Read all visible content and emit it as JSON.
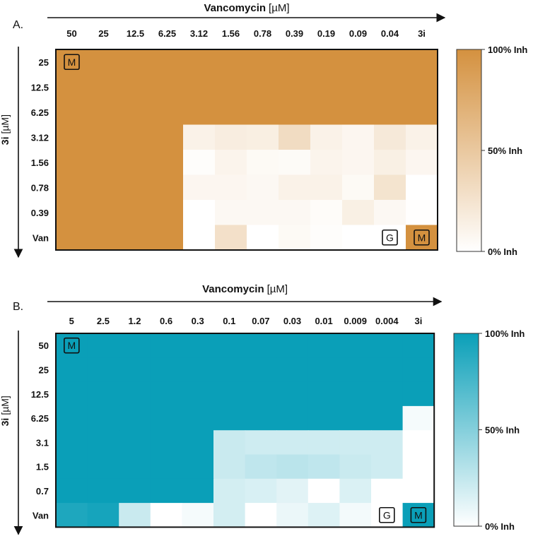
{
  "colors": {
    "panelA_full": "#d4913f",
    "panelB_full": "#0a9fb8",
    "text": "#111111",
    "marker_bg_white": "#ffffff"
  },
  "chart_data": [
    {
      "type": "heatmap",
      "panel_label": "A.",
      "x_title": "Vancomycin",
      "x_unit": "[µM]",
      "y_title": "3i",
      "y_unit": "[µM]",
      "x_labels": [
        "50",
        "25",
        "12.5",
        "6.25",
        "3.12",
        "1.56",
        "0.78",
        "0.39",
        "0.19",
        "0.09",
        "0.04",
        "3i"
      ],
      "y_labels": [
        "25",
        "12.5",
        "6.25",
        "3.12",
        "1.56",
        "0.78",
        "0.39",
        "Van"
      ],
      "colorbar_labels": [
        "100% Inh",
        "50% Inh",
        "0% Inh"
      ],
      "color_scale": [
        "#ffffff",
        "#d4913f"
      ],
      "values": [
        [
          100,
          100,
          100,
          100,
          100,
          100,
          100,
          100,
          100,
          100,
          100,
          100
        ],
        [
          100,
          100,
          100,
          100,
          100,
          100,
          100,
          100,
          100,
          100,
          100,
          100
        ],
        [
          100,
          100,
          100,
          100,
          100,
          100,
          100,
          100,
          100,
          100,
          100,
          100
        ],
        [
          100,
          100,
          100,
          100,
          12,
          16,
          15,
          32,
          12,
          8,
          20,
          12
        ],
        [
          100,
          100,
          100,
          100,
          2,
          10,
          5,
          4,
          10,
          8,
          14,
          8
        ],
        [
          100,
          100,
          100,
          100,
          8,
          8,
          6,
          12,
          12,
          5,
          25,
          0
        ],
        [
          100,
          100,
          100,
          100,
          0,
          6,
          6,
          6,
          3,
          14,
          6,
          1
        ],
        [
          100,
          100,
          100,
          100,
          0,
          28,
          0,
          5,
          2,
          0,
          0,
          100
        ]
      ],
      "markers": [
        {
          "row": 0,
          "col": 0,
          "label": "M"
        },
        {
          "row": 7,
          "col": 10,
          "label": "G"
        },
        {
          "row": 7,
          "col": 11,
          "label": "M"
        }
      ]
    },
    {
      "type": "heatmap",
      "panel_label": "B.",
      "x_title": "Vancomycin",
      "x_unit": "[µM]",
      "y_title": "3i",
      "y_unit": "[µM]",
      "x_labels": [
        "5",
        "2.5",
        "1.2",
        "0.6",
        "0.3",
        "0.1",
        "0.07",
        "0.03",
        "0.01",
        "0.009",
        "0.004",
        "3i"
      ],
      "y_labels": [
        "50",
        "25",
        "12.5",
        "6.25",
        "3.1",
        "1.5",
        "0.7",
        "Van"
      ],
      "colorbar_labels": [
        "100% Inh",
        "50% Inh",
        "0% Inh"
      ],
      "color_scale": [
        "#ffffff",
        "#0a9fb8"
      ],
      "values": [
        [
          100,
          100,
          100,
          100,
          100,
          100,
          100,
          100,
          100,
          100,
          100,
          100
        ],
        [
          100,
          100,
          100,
          100,
          100,
          100,
          100,
          100,
          100,
          100,
          100,
          100
        ],
        [
          100,
          100,
          100,
          100,
          100,
          100,
          100,
          100,
          100,
          100,
          100,
          100
        ],
        [
          100,
          100,
          100,
          100,
          100,
          100,
          100,
          100,
          100,
          100,
          100,
          4
        ],
        [
          100,
          100,
          100,
          100,
          100,
          22,
          20,
          20,
          20,
          20,
          20,
          0
        ],
        [
          100,
          100,
          100,
          100,
          100,
          22,
          26,
          28,
          26,
          22,
          20,
          0
        ],
        [
          100,
          100,
          100,
          100,
          100,
          18,
          16,
          12,
          0,
          15,
          0,
          0
        ],
        [
          92,
          95,
          22,
          0,
          4,
          18,
          0,
          8,
          14,
          5,
          0,
          100
        ]
      ],
      "markers": [
        {
          "row": 0,
          "col": 0,
          "label": "M"
        },
        {
          "row": 7,
          "col": 10,
          "label": "G"
        },
        {
          "row": 7,
          "col": 11,
          "label": "M"
        }
      ]
    }
  ]
}
